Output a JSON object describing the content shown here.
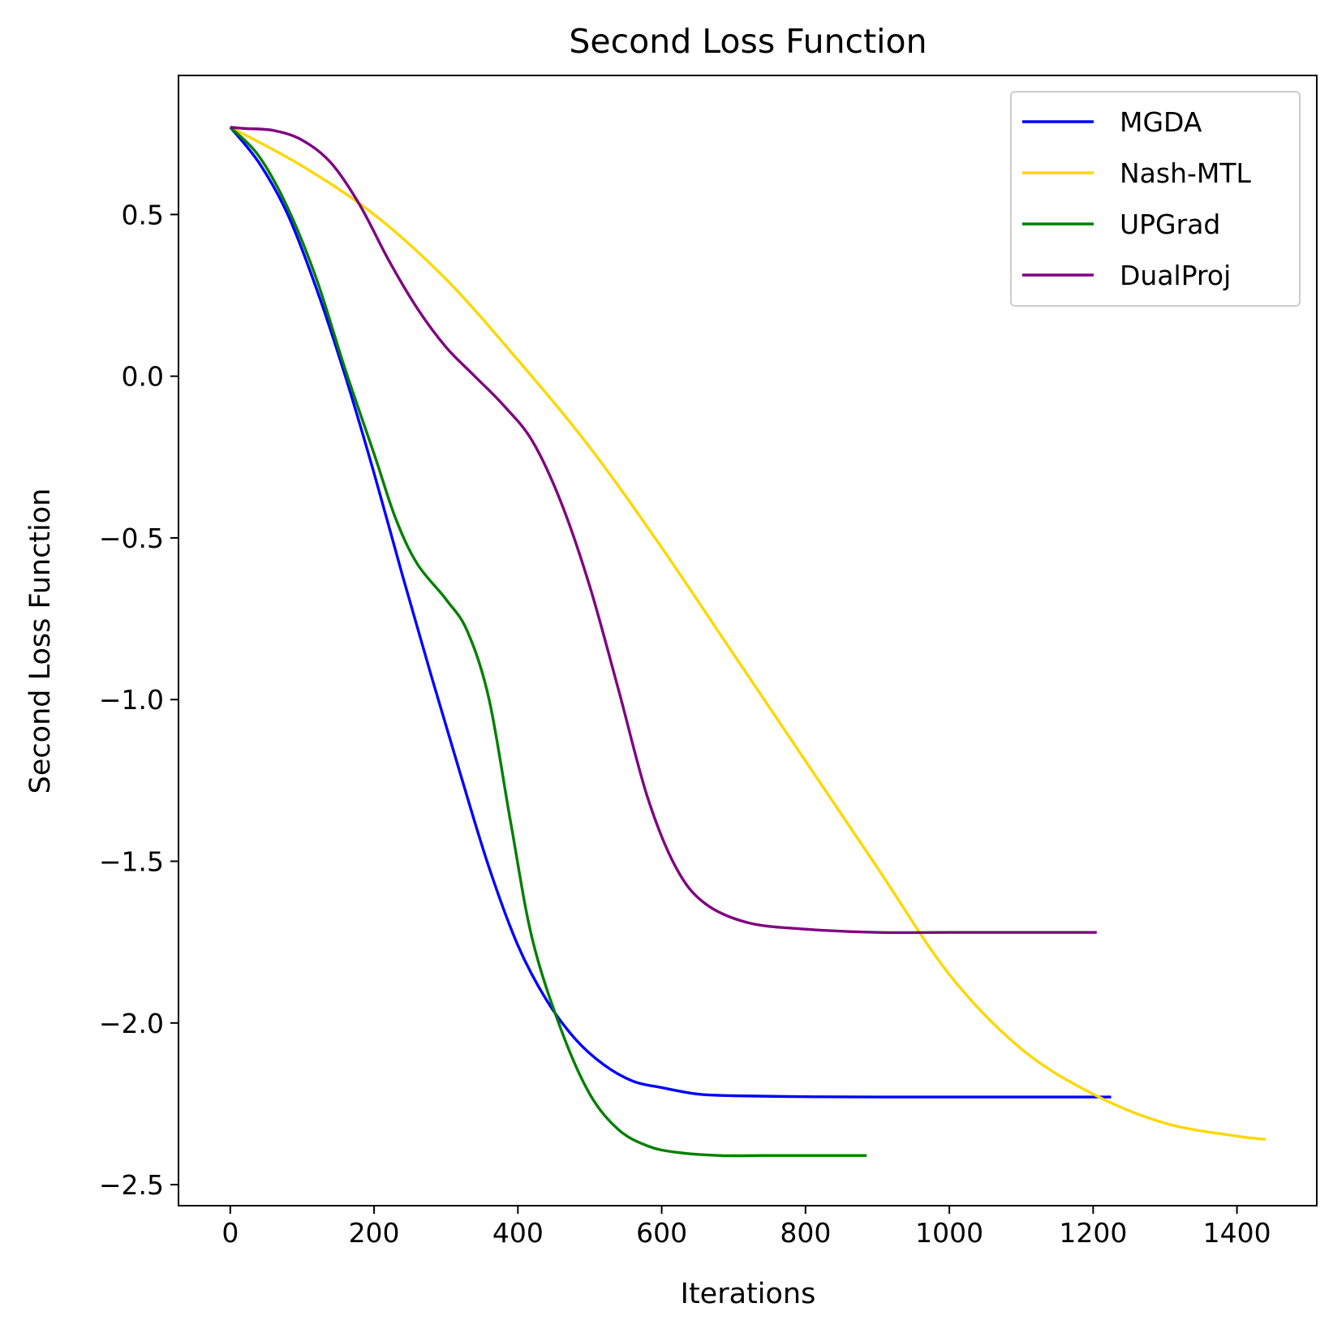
{
  "chart_data": {
    "type": "line",
    "title": "Second Loss Function",
    "xlabel": "Iterations",
    "ylabel": "Second Loss Function",
    "xlim": [
      -72,
      1511
    ],
    "ylim": [
      -2.565,
      0.93
    ],
    "xticks": [
      0,
      200,
      400,
      600,
      800,
      1000,
      1200,
      1400
    ],
    "xtick_labels": [
      "0",
      "200",
      "400",
      "600",
      "800",
      "1000",
      "1200",
      "1400"
    ],
    "yticks": [
      0.5,
      0.0,
      -0.5,
      -1.0,
      -1.5,
      -2.0,
      -2.5
    ],
    "ytick_labels": [
      "0.5",
      "0.0",
      "−0.5",
      "−1.0",
      "−1.5",
      "−2.0",
      "−2.5"
    ],
    "grid": false,
    "legend_position": "top-right",
    "series": [
      {
        "name": "MGDA",
        "color": "#0000ff",
        "x": [
          0,
          40,
          80,
          120,
          160,
          200,
          240,
          280,
          320,
          360,
          400,
          440,
          480,
          520,
          560,
          600,
          650,
          700,
          800,
          900,
          1000,
          1100,
          1225
        ],
        "y": [
          0.77,
          0.66,
          0.5,
          0.27,
          0.0,
          -0.3,
          -0.62,
          -0.93,
          -1.23,
          -1.52,
          -1.76,
          -1.93,
          -2.05,
          -2.13,
          -2.18,
          -2.2,
          -2.22,
          -2.225,
          -2.228,
          -2.229,
          -2.229,
          -2.229,
          -2.229
        ]
      },
      {
        "name": "Nash-MTL",
        "color": "#ffd700",
        "x": [
          0,
          100,
          200,
          300,
          400,
          500,
          600,
          700,
          800,
          900,
          1000,
          1100,
          1200,
          1300,
          1400,
          1440
        ],
        "y": [
          0.77,
          0.65,
          0.5,
          0.3,
          0.05,
          -0.22,
          -0.53,
          -0.86,
          -1.19,
          -1.52,
          -1.85,
          -2.08,
          -2.22,
          -2.31,
          -2.35,
          -2.36
        ]
      },
      {
        "name": "UPGrad",
        "color": "#008000",
        "x": [
          0,
          40,
          80,
          120,
          160,
          200,
          230,
          260,
          300,
          330,
          360,
          390,
          420,
          460,
          500,
          540,
          580,
          620,
          680,
          740,
          800,
          885
        ],
        "y": [
          0.77,
          0.68,
          0.52,
          0.3,
          0.02,
          -0.24,
          -0.44,
          -0.58,
          -0.69,
          -0.79,
          -1.0,
          -1.38,
          -1.74,
          -2.02,
          -2.22,
          -2.33,
          -2.38,
          -2.4,
          -2.41,
          -2.41,
          -2.41,
          -2.41
        ]
      },
      {
        "name": "DualProj",
        "color": "#800080",
        "x": [
          0,
          20,
          60,
          100,
          140,
          180,
          220,
          260,
          300,
          340,
          380,
          420,
          460,
          500,
          540,
          580,
          620,
          660,
          720,
          800,
          900,
          1000,
          1205
        ],
        "y": [
          0.77,
          0.766,
          0.76,
          0.73,
          0.66,
          0.53,
          0.36,
          0.21,
          0.09,
          0.0,
          -0.09,
          -0.2,
          -0.39,
          -0.65,
          -0.97,
          -1.3,
          -1.52,
          -1.63,
          -1.69,
          -1.71,
          -1.72,
          -1.72,
          -1.72
        ]
      }
    ]
  }
}
